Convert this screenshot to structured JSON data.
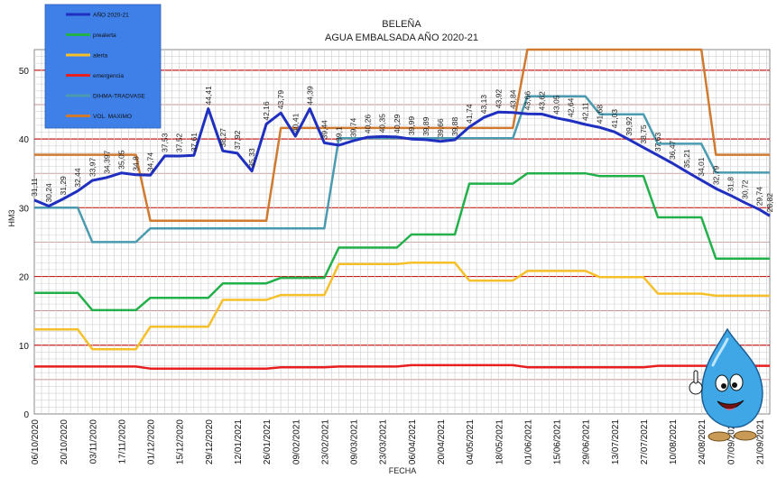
{
  "chart_data": {
    "type": "line",
    "title": "BELEÑA",
    "subtitle": "AGUA EMBALSADA AÑO 2020-21",
    "xlabel": "FECHA",
    "ylabel": "HM3",
    "ylim": [
      0,
      53
    ],
    "yticks": [
      0,
      10,
      20,
      30,
      40,
      50
    ],
    "xrange": [
      "2020-10-06",
      "2021-09-26"
    ],
    "xticks": [
      "06/10/2020",
      "20/10/2020",
      "03/11/2020",
      "17/11/2020",
      "01/12/2020",
      "15/12/2020",
      "29/12/2020",
      "12/01/2021",
      "26/01/2021",
      "09/02/2021",
      "23/02/2021",
      "09/03/2021",
      "23/03/2021",
      "06/04/2021",
      "20/04/2021",
      "04/05/2021",
      "18/05/2021",
      "01/06/2021",
      "15/06/2021",
      "29/06/2021",
      "13/07/2021",
      "27/07/2021",
      "10/08/2021",
      "24/08/2021",
      "07/09/2021",
      "21/09/2021"
    ],
    "legend_position": "top-left",
    "series": [
      {
        "name": "AÑO 2020-21",
        "color": "#1f2fbf",
        "width": 3,
        "points": [
          [
            "2020-10-06",
            31.11
          ],
          [
            "2020-10-13",
            30.24
          ],
          [
            "2020-10-20",
            31.29
          ],
          [
            "2020-10-27",
            32.44
          ],
          [
            "2020-11-03",
            33.97
          ],
          [
            "2020-11-10",
            34.397
          ],
          [
            "2020-11-17",
            35.05
          ],
          [
            "2020-11-24",
            34.8
          ],
          [
            "2020-12-01",
            34.74
          ],
          [
            "2020-12-08",
            37.53
          ],
          [
            "2020-12-15",
            37.52
          ],
          [
            "2020-12-22",
            37.61
          ],
          [
            "2020-12-29",
            44.41
          ],
          [
            "2021-01-05",
            38.27
          ],
          [
            "2021-01-12",
            37.92
          ],
          [
            "2021-01-19",
            35.33
          ],
          [
            "2021-01-26",
            42.16
          ],
          [
            "2021-02-02",
            43.79
          ],
          [
            "2021-02-09",
            40.41
          ],
          [
            "2021-02-16",
            44.39
          ],
          [
            "2021-02-23",
            39.44
          ],
          [
            "2021-03-02",
            39.1
          ],
          [
            "2021-03-09",
            39.74
          ],
          [
            "2021-03-16",
            40.26
          ],
          [
            "2021-03-23",
            40.35
          ],
          [
            "2021-03-30",
            40.29
          ],
          [
            "2021-04-06",
            39.99
          ],
          [
            "2021-04-13",
            39.89
          ],
          [
            "2021-04-20",
            39.66
          ],
          [
            "2021-04-27",
            39.88
          ],
          [
            "2021-05-04",
            41.74
          ],
          [
            "2021-05-11",
            43.13
          ],
          [
            "2021-05-18",
            43.92
          ],
          [
            "2021-05-25",
            43.84
          ],
          [
            "2021-06-01",
            43.66
          ],
          [
            "2021-06-08",
            43.62
          ],
          [
            "2021-06-15",
            43.05
          ],
          [
            "2021-06-22",
            42.64
          ],
          [
            "2021-06-29",
            42.11
          ],
          [
            "2021-07-06",
            41.68
          ],
          [
            "2021-07-13",
            41.03
          ],
          [
            "2021-07-20",
            39.92
          ],
          [
            "2021-07-27",
            38.75
          ],
          [
            "2021-08-03",
            37.63
          ],
          [
            "2021-08-10",
            36.47
          ],
          [
            "2021-08-17",
            35.21
          ],
          [
            "2021-08-24",
            34.01
          ],
          [
            "2021-08-31",
            32.79
          ],
          [
            "2021-09-07",
            31.8
          ],
          [
            "2021-09-14",
            30.72
          ],
          [
            "2021-09-21",
            29.74
          ],
          [
            "2021-09-26",
            28.82
          ]
        ],
        "labels": [
          "31,11",
          "30,24",
          "31,29",
          "32,44",
          "33,97",
          "34,397",
          "35,05",
          "34,8",
          "34,74",
          "37,53",
          "37,52",
          "37,61",
          "44,41",
          "38,27",
          "37,92",
          "35,33",
          "42,16",
          "43,79",
          "40,41",
          "44,39",
          "39,44",
          "39,1",
          "39,74",
          "40,26",
          "40,35",
          "40,29",
          "39,99",
          "39,89",
          "39,66",
          "39,88",
          "41,74",
          "43,13",
          "43,92",
          "43,84",
          "43,66",
          "43,62",
          "43,05",
          "42,64",
          "42,11",
          "41,68",
          "41,03",
          "39,92",
          "38,75",
          "37,63",
          "36,47",
          "35,21",
          "34,01",
          "32,79",
          "31,8",
          "30,72",
          "29,74",
          "28,82"
        ]
      },
      {
        "name": "prealerta",
        "color": "#22b04a",
        "width": 2.5,
        "points": [
          [
            "2020-10-06",
            17.6
          ],
          [
            "2020-10-27",
            17.6
          ],
          [
            "2020-11-03",
            15.1
          ],
          [
            "2020-11-24",
            15.1
          ],
          [
            "2020-12-01",
            16.9
          ],
          [
            "2020-12-29",
            16.9
          ],
          [
            "2021-01-05",
            19.0
          ],
          [
            "2021-01-26",
            19.0
          ],
          [
            "2021-02-02",
            19.8
          ],
          [
            "2021-02-23",
            19.8
          ],
          [
            "2021-03-02",
            24.2
          ],
          [
            "2021-03-30",
            24.2
          ],
          [
            "2021-04-06",
            26.1
          ],
          [
            "2021-04-27",
            26.1
          ],
          [
            "2021-05-04",
            33.5
          ],
          [
            "2021-05-25",
            33.5
          ],
          [
            "2021-06-01",
            35.0
          ],
          [
            "2021-06-29",
            35.0
          ],
          [
            "2021-07-06",
            34.6
          ],
          [
            "2021-07-27",
            34.6
          ],
          [
            "2021-08-03",
            28.6
          ],
          [
            "2021-08-24",
            28.6
          ],
          [
            "2021-08-31",
            22.6
          ],
          [
            "2021-09-26",
            22.6
          ]
        ]
      },
      {
        "name": "alerta",
        "color": "#f5c02a",
        "width": 2.5,
        "points": [
          [
            "2020-10-06",
            12.3
          ],
          [
            "2020-10-27",
            12.3
          ],
          [
            "2020-11-03",
            9.4
          ],
          [
            "2020-11-24",
            9.4
          ],
          [
            "2020-12-01",
            12.7
          ],
          [
            "2020-12-29",
            12.7
          ],
          [
            "2021-01-05",
            16.6
          ],
          [
            "2021-01-26",
            16.6
          ],
          [
            "2021-02-02",
            17.3
          ],
          [
            "2021-02-23",
            17.3
          ],
          [
            "2021-03-02",
            21.8
          ],
          [
            "2021-03-30",
            21.8
          ],
          [
            "2021-04-06",
            22.0
          ],
          [
            "2021-04-27",
            22.0
          ],
          [
            "2021-05-04",
            19.4
          ],
          [
            "2021-05-25",
            19.4
          ],
          [
            "2021-06-01",
            20.8
          ],
          [
            "2021-06-29",
            20.8
          ],
          [
            "2021-07-06",
            19.9
          ],
          [
            "2021-07-27",
            19.9
          ],
          [
            "2021-08-03",
            17.5
          ],
          [
            "2021-08-24",
            17.5
          ],
          [
            "2021-08-31",
            17.2
          ],
          [
            "2021-09-26",
            17.2
          ]
        ]
      },
      {
        "name": "emergencia",
        "color": "#e81f1f",
        "width": 2.5,
        "points": [
          [
            "2020-10-06",
            6.9
          ],
          [
            "2020-11-24",
            6.9
          ],
          [
            "2020-12-01",
            6.6
          ],
          [
            "2021-01-26",
            6.6
          ],
          [
            "2021-02-02",
            6.8
          ],
          [
            "2021-02-23",
            6.8
          ],
          [
            "2021-03-02",
            6.9
          ],
          [
            "2021-03-30",
            6.9
          ],
          [
            "2021-04-06",
            7.1
          ],
          [
            "2021-05-25",
            7.1
          ],
          [
            "2021-06-01",
            6.8
          ],
          [
            "2021-07-27",
            6.8
          ],
          [
            "2021-08-03",
            7.0
          ],
          [
            "2021-09-26",
            7.0
          ]
        ]
      },
      {
        "name": "DIHMA-TRADVASE",
        "color": "#4a9ab0",
        "width": 2.5,
        "points": [
          [
            "2020-10-06",
            30.0
          ],
          [
            "2020-10-27",
            30.0
          ],
          [
            "2020-11-03",
            25.0
          ],
          [
            "2020-11-24",
            25.0
          ],
          [
            "2020-12-01",
            27.0
          ],
          [
            "2021-02-23",
            27.0
          ],
          [
            "2021-03-02",
            40.1
          ],
          [
            "2021-05-25",
            40.1
          ],
          [
            "2021-06-01",
            46.2
          ],
          [
            "2021-06-29",
            46.2
          ],
          [
            "2021-07-06",
            43.6
          ],
          [
            "2021-07-27",
            43.6
          ],
          [
            "2021-08-03",
            39.3
          ],
          [
            "2021-08-24",
            39.3
          ],
          [
            "2021-08-31",
            35.1
          ],
          [
            "2021-09-26",
            35.1
          ]
        ]
      },
      {
        "name": "VOL. MAXIMO",
        "color": "#d07a30",
        "width": 2.5,
        "points": [
          [
            "2020-10-06",
            37.7
          ],
          [
            "2020-11-24",
            37.7
          ],
          [
            "2020-12-01",
            28.1
          ],
          [
            "2021-01-26",
            28.1
          ],
          [
            "2021-02-02",
            41.6
          ],
          [
            "2021-05-25",
            41.6
          ],
          [
            "2021-06-01",
            53.0
          ],
          [
            "2021-08-24",
            53.0
          ],
          [
            "2021-08-31",
            37.7
          ],
          [
            "2021-09-26",
            37.7
          ]
        ]
      }
    ]
  }
}
